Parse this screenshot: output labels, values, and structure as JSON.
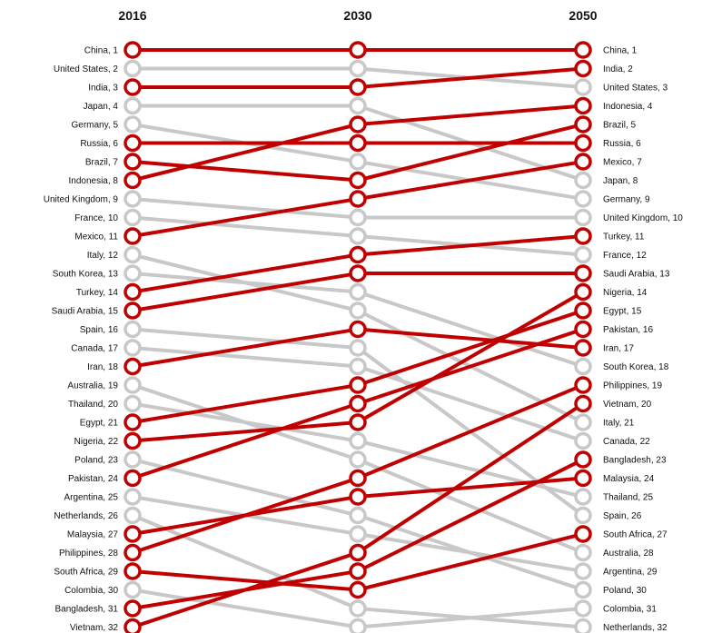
{
  "chart_data": {
    "type": "slope",
    "title": "",
    "columns": [
      "2016",
      "2030",
      "2050"
    ],
    "colors": {
      "highlight": "#c00000",
      "muted": "#c8c8c8"
    },
    "countries": [
      {
        "name": "China",
        "ranks": [
          1,
          1,
          1
        ],
        "highlight": true
      },
      {
        "name": "United States",
        "ranks": [
          2,
          2,
          3
        ],
        "highlight": false
      },
      {
        "name": "India",
        "ranks": [
          3,
          3,
          2
        ],
        "highlight": true
      },
      {
        "name": "Japan",
        "ranks": [
          4,
          4,
          8
        ],
        "highlight": false
      },
      {
        "name": "Germany",
        "ranks": [
          5,
          7,
          9
        ],
        "highlight": false
      },
      {
        "name": "Russia",
        "ranks": [
          6,
          6,
          6
        ],
        "highlight": true
      },
      {
        "name": "Brazil",
        "ranks": [
          7,
          8,
          5
        ],
        "highlight": true
      },
      {
        "name": "Indonesia",
        "ranks": [
          8,
          5,
          4
        ],
        "highlight": true
      },
      {
        "name": "United Kingdom",
        "ranks": [
          9,
          10,
          10
        ],
        "highlight": false
      },
      {
        "name": "France",
        "ranks": [
          10,
          11,
          12
        ],
        "highlight": false
      },
      {
        "name": "Mexico",
        "ranks": [
          11,
          9,
          7
        ],
        "highlight": true
      },
      {
        "name": "Italy",
        "ranks": [
          12,
          15,
          21
        ],
        "highlight": false
      },
      {
        "name": "South Korea",
        "ranks": [
          13,
          14,
          18
        ],
        "highlight": false
      },
      {
        "name": "Turkey",
        "ranks": [
          14,
          12,
          11
        ],
        "highlight": true
      },
      {
        "name": "Saudi Arabia",
        "ranks": [
          15,
          13,
          13
        ],
        "highlight": true
      },
      {
        "name": "Spain",
        "ranks": [
          16,
          17,
          26
        ],
        "highlight": false
      },
      {
        "name": "Canada",
        "ranks": [
          17,
          18,
          22
        ],
        "highlight": false
      },
      {
        "name": "Iran",
        "ranks": [
          18,
          16,
          17
        ],
        "highlight": true
      },
      {
        "name": "Australia",
        "ranks": [
          19,
          23,
          28
        ],
        "highlight": false
      },
      {
        "name": "Thailand",
        "ranks": [
          20,
          22,
          25
        ],
        "highlight": false
      },
      {
        "name": "Egypt",
        "ranks": [
          21,
          19,
          15
        ],
        "highlight": true
      },
      {
        "name": "Nigeria",
        "ranks": [
          22,
          21,
          14
        ],
        "highlight": true
      },
      {
        "name": "Poland",
        "ranks": [
          23,
          26,
          30
        ],
        "highlight": false
      },
      {
        "name": "Pakistan",
        "ranks": [
          24,
          20,
          16
        ],
        "highlight": true
      },
      {
        "name": "Argentina",
        "ranks": [
          25,
          27,
          29
        ],
        "highlight": false
      },
      {
        "name": "Netherlands",
        "ranks": [
          26,
          31,
          32
        ],
        "highlight": false
      },
      {
        "name": "Malaysia",
        "ranks": [
          27,
          25,
          24
        ],
        "highlight": true
      },
      {
        "name": "Philippines",
        "ranks": [
          28,
          24,
          19
        ],
        "highlight": true
      },
      {
        "name": "South Africa",
        "ranks": [
          29,
          30,
          27
        ],
        "highlight": true
      },
      {
        "name": "Colombia",
        "ranks": [
          30,
          32,
          31
        ],
        "highlight": false
      },
      {
        "name": "Bangladesh",
        "ranks": [
          31,
          29,
          23
        ],
        "highlight": true
      },
      {
        "name": "Vietnam",
        "ranks": [
          32,
          28,
          20
        ],
        "highlight": true
      }
    ]
  }
}
